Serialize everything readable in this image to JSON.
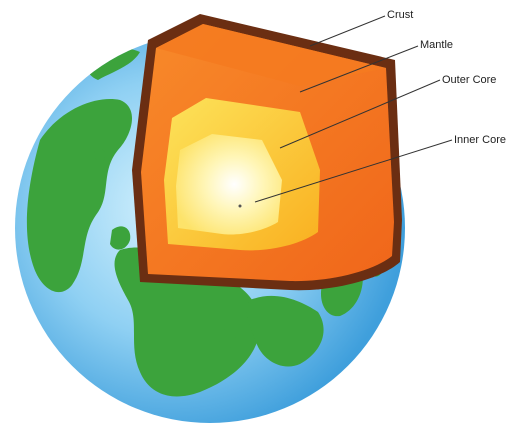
{
  "diagram": {
    "labels": {
      "crust": "Crust",
      "mantle": "Mantle",
      "outer_core": "Outer Core",
      "inner_core": "Inner Core"
    },
    "colors": {
      "ocean": "#5ab4e8",
      "ocean_highlight": "#c9ecfb",
      "land": "#3ca33c",
      "crust": "#6b2e12",
      "mantle": "#f47a1c",
      "mantle_dark": "#e85a10",
      "outer_core": "#fbbf2a",
      "inner_core": "#fff6b8"
    }
  }
}
